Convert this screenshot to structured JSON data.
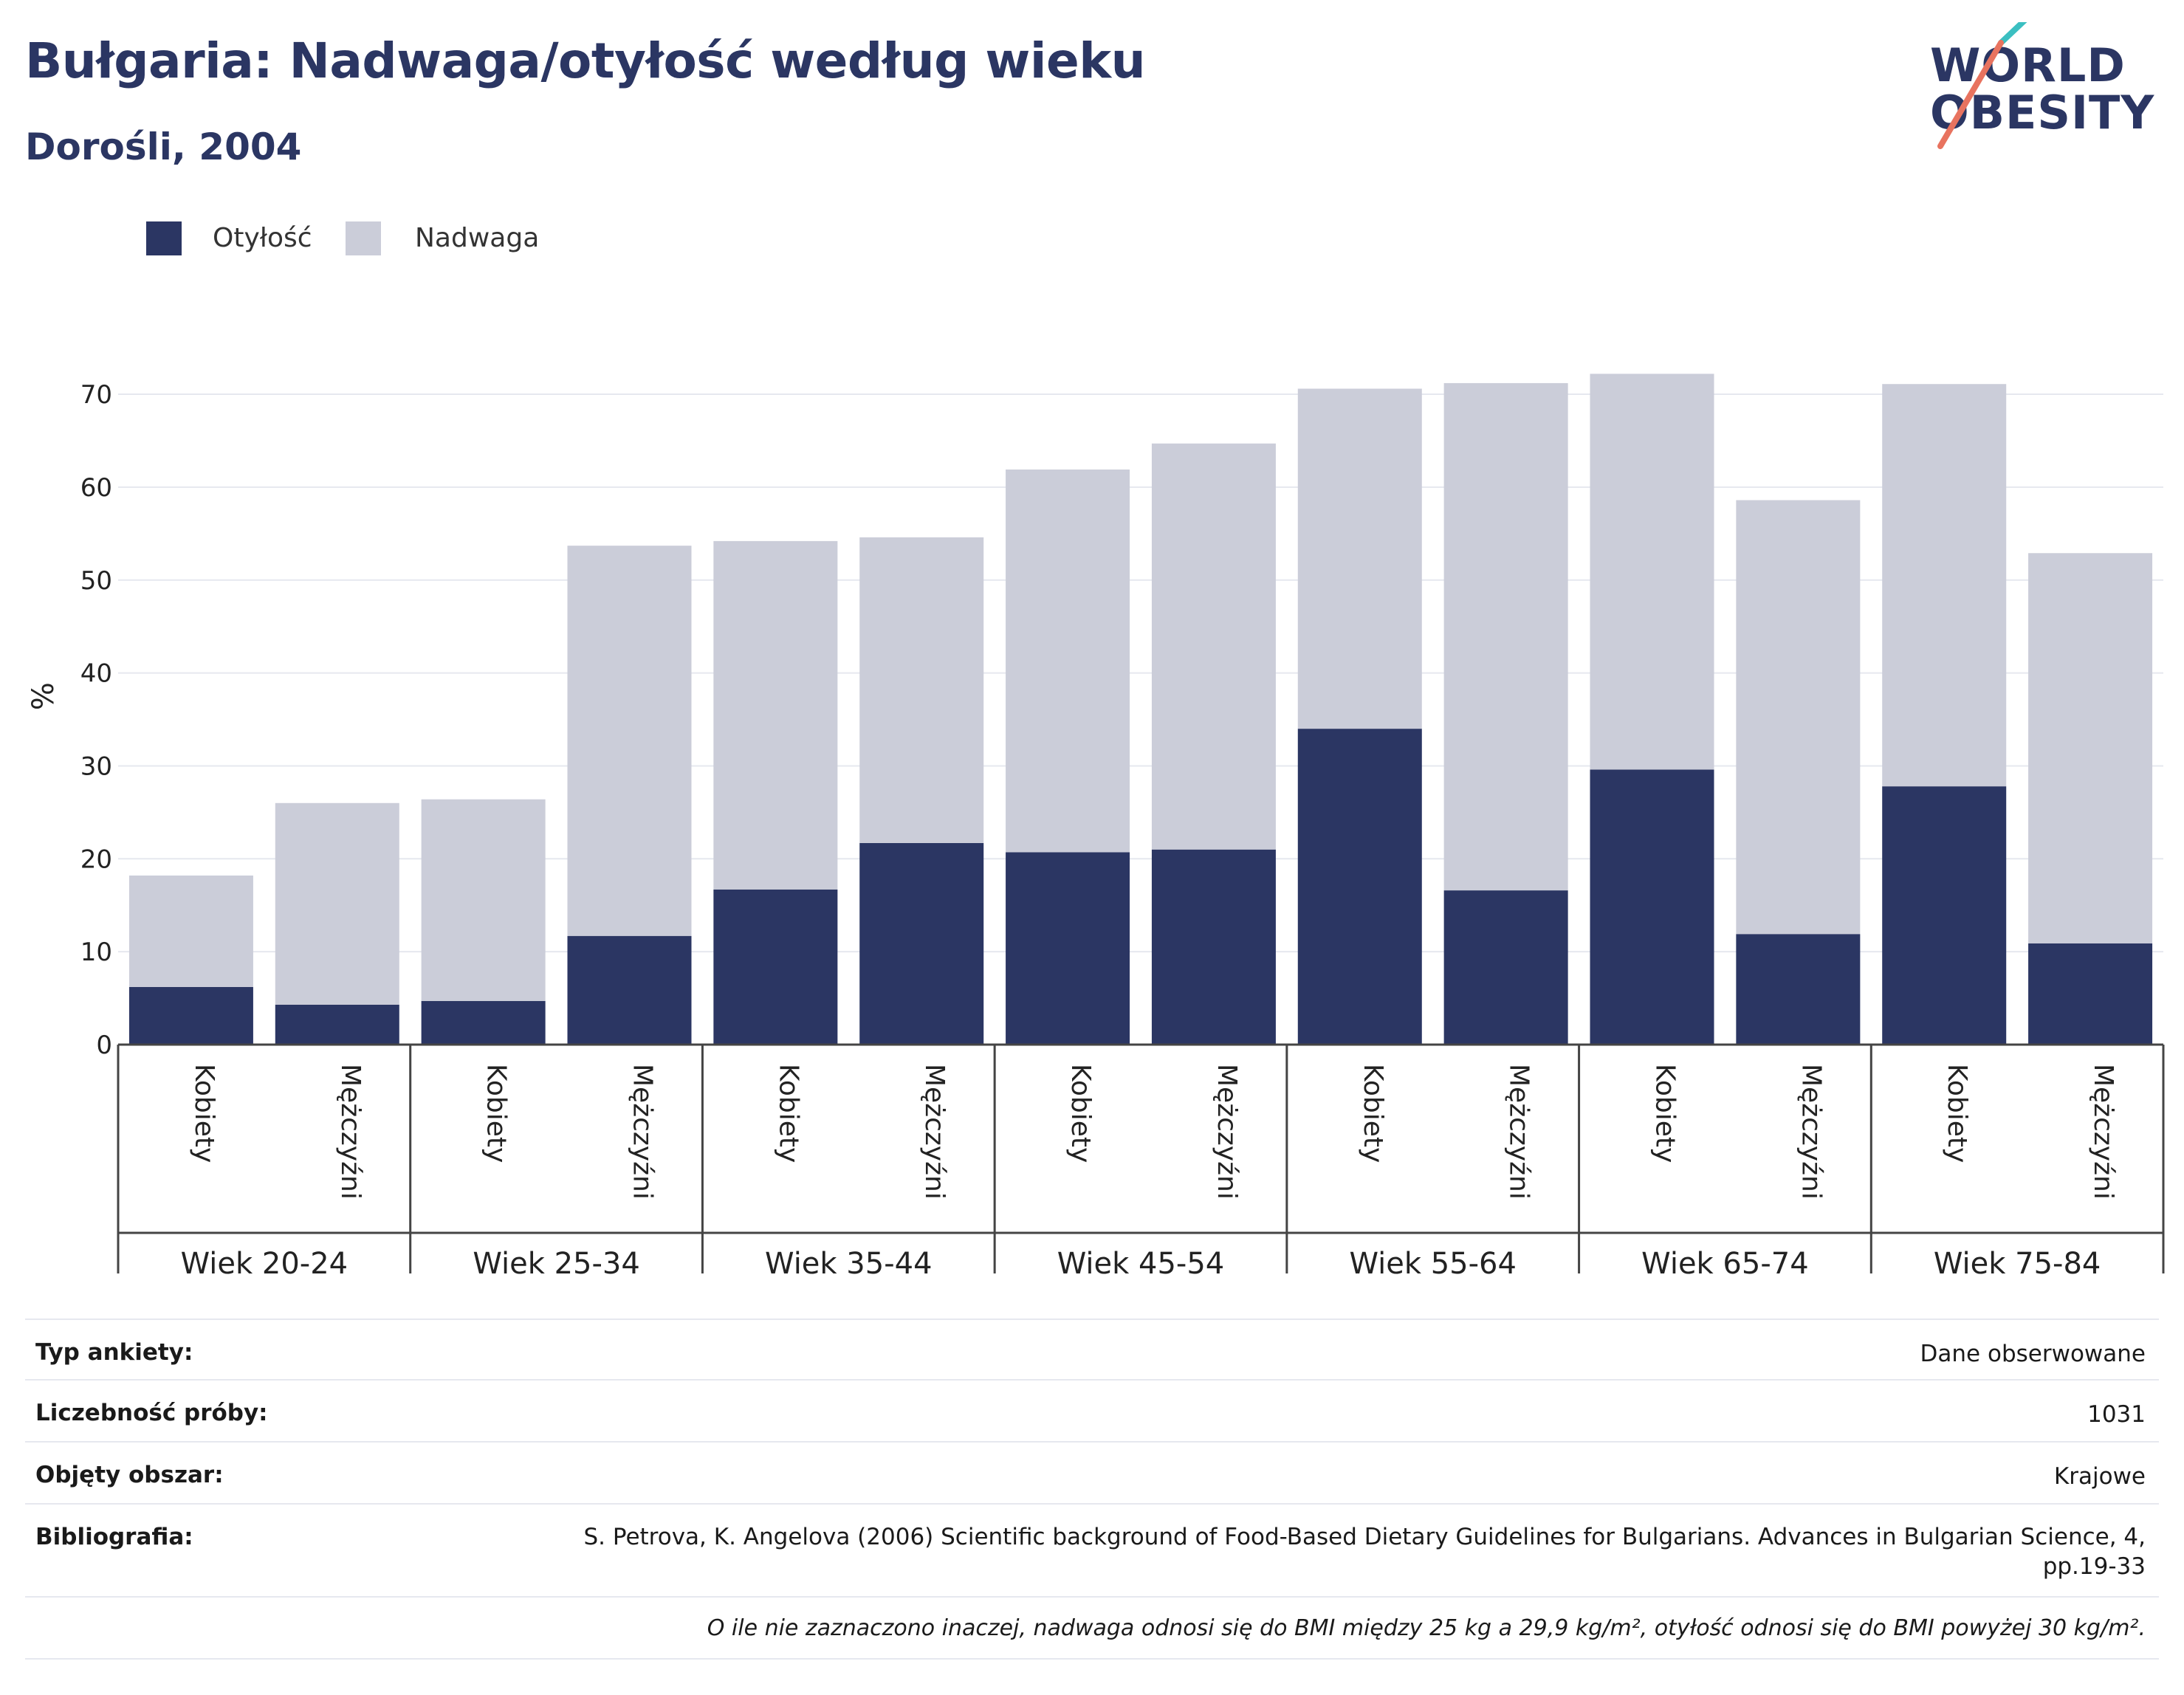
{
  "title": "Bułgaria: Nadwaga/otyłość według wieku",
  "subtitle": "Dorośli, 2004",
  "logo": {
    "line1": "WORLD",
    "line2": "OBESITY"
  },
  "colors": {
    "obesity": "#2b3663",
    "overweight": "#cbcdd9",
    "text_dark": "#2b3663",
    "grid": "#e6e8ef"
  },
  "legend": [
    {
      "label": "Otyłość",
      "color": "#2b3663"
    },
    {
      "label": "Nadwaga",
      "color": "#cbcdd9"
    }
  ],
  "chart_data": {
    "type": "bar",
    "stacked": true,
    "ylabel": "%",
    "ylim": [
      0,
      75
    ],
    "yticks": [
      0,
      10,
      20,
      30,
      40,
      50,
      60,
      70
    ],
    "grid": true,
    "legend_position": "top-left",
    "groups": [
      "Wiek 20-24",
      "Wiek 25-34",
      "Wiek 35-44",
      "Wiek 45-54",
      "Wiek 55-64",
      "Wiek 65-74",
      "Wiek 75-84"
    ],
    "subcategories": [
      "Kobiety",
      "Mężczyźni"
    ],
    "series": [
      {
        "name": "Otyłość",
        "values": [
          6.2,
          4.3,
          4.7,
          11.7,
          16.7,
          21.7,
          20.7,
          21.0,
          34.0,
          16.6,
          29.6,
          11.9,
          27.8,
          10.9
        ]
      },
      {
        "name": "Nadwaga",
        "values": [
          12.0,
          21.7,
          21.7,
          42.0,
          37.5,
          32.9,
          41.2,
          43.7,
          36.6,
          54.6,
          42.6,
          46.7,
          43.3,
          42.0
        ]
      }
    ]
  },
  "meta": {
    "rows": [
      {
        "label": "Typ ankiety:",
        "value": "Dane obserwowane"
      },
      {
        "label": "Liczebność próby:",
        "value": "1031"
      },
      {
        "label": "Objęty obszar:",
        "value": "Krajowe"
      },
      {
        "label": "Bibliografia:",
        "value": "S. Petrova, K. Angelova (2006) Scientific background of Food-Based Dietary Guidelines for Bulgarians. Advances in Bulgarian Science, 4, pp.19-33"
      }
    ],
    "note": "O ile nie zaznaczono inaczej, nadwaga odnosi się do BMI między 25 kg a 29,9 kg/m², otyłość odnosi się do BMI powyżej 30 kg/m²."
  }
}
